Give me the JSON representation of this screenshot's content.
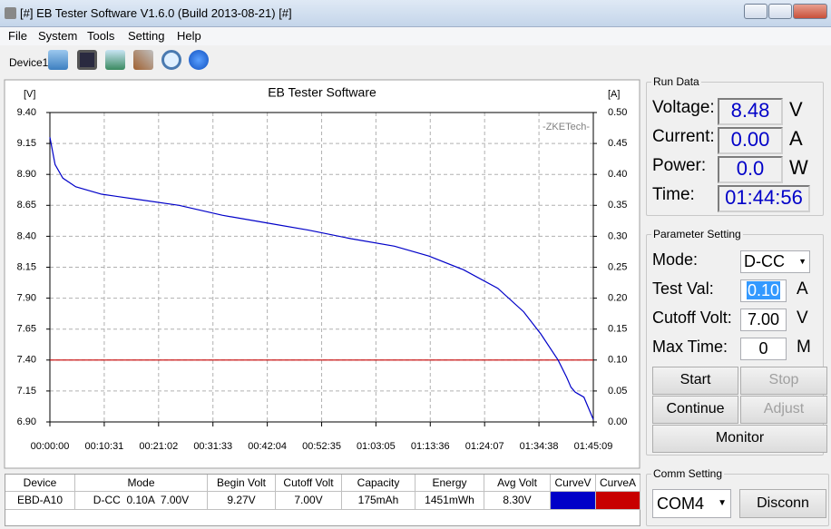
{
  "window": {
    "title": "[#] EB Tester Software V1.6.0 (Build 2013-08-21) [#]"
  },
  "menu": [
    "File",
    "System",
    "Tools",
    "Setting",
    "Help"
  ],
  "toolbar": {
    "device": "Device1"
  },
  "chart_data": {
    "type": "line",
    "title": "EB Tester Software",
    "y_label": "[V]",
    "y2_label": "[A]",
    "annotation": "-ZKETech-",
    "x": [
      0,
      60,
      150,
      300,
      600,
      1000,
      1500,
      2000,
      2500,
      3000,
      3500,
      4000,
      4400,
      4800,
      5200,
      5500,
      5700,
      5900,
      6000,
      6050,
      6100,
      6200,
      6309
    ],
    "series": [
      {
        "name": "Voltage",
        "color": "#0000c8",
        "values": [
          9.2,
          8.98,
          8.87,
          8.8,
          8.74,
          8.7,
          8.65,
          8.57,
          8.51,
          8.45,
          8.38,
          8.32,
          8.24,
          8.13,
          7.98,
          7.79,
          7.61,
          7.4,
          7.26,
          7.18,
          7.14,
          7.1,
          6.92
        ]
      },
      {
        "name": "Current",
        "color": "#c80000",
        "axis": "y2",
        "values": [
          0.1,
          0.1,
          0.1,
          0.1,
          0.1,
          0.1,
          0.1,
          0.1,
          0.1,
          0.1,
          0.1,
          0.1,
          0.1,
          0.1,
          0.1,
          0.1,
          0.1,
          0.1,
          0.1,
          0.1,
          0.1,
          0.1,
          0.1
        ]
      }
    ],
    "xlim": [
      0,
      6309
    ],
    "xticks": [
      {
        "value": 0,
        "label": "00:00:00"
      },
      {
        "value": 631,
        "label": "00:10:31"
      },
      {
        "value": 1262,
        "label": "00:21:02"
      },
      {
        "value": 1893,
        "label": "00:31:33"
      },
      {
        "value": 2524,
        "label": "00:42:04"
      },
      {
        "value": 3155,
        "label": "00:52:35"
      },
      {
        "value": 3785,
        "label": "01:03:05"
      },
      {
        "value": 4416,
        "label": "01:13:36"
      },
      {
        "value": 5047,
        "label": "01:24:07"
      },
      {
        "value": 5678,
        "label": "01:34:38"
      },
      {
        "value": 6309,
        "label": "01:45:09"
      }
    ],
    "ylim": [
      6.9,
      9.4
    ],
    "yticks": [
      {
        "value": 6.9,
        "label": "6.90"
      },
      7.15,
      {
        "value": 7.4,
        "label": "7.40"
      },
      7.65,
      {
        "value": 7.9,
        "label": "7.90"
      },
      8.15,
      {
        "value": 8.4,
        "label": "8.40"
      },
      8.65,
      {
        "value": 8.9,
        "label": "8.90"
      },
      9.15,
      {
        "value": 9.4,
        "label": "9.40"
      }
    ],
    "y2lim": [
      0,
      0.5
    ],
    "y2ticks": [
      {
        "value": 0,
        "label": "0.00"
      },
      0.05,
      {
        "value": 0.1,
        "label": "0.10"
      },
      0.15,
      {
        "value": 0.2,
        "label": "0.20"
      },
      0.25,
      {
        "value": 0.3,
        "label": "0.30"
      },
      0.35,
      {
        "value": 0.4,
        "label": "0.40"
      },
      0.45,
      {
        "value": 0.5,
        "label": "0.50"
      }
    ],
    "grid": true
  },
  "run_data": {
    "title": "Run Data",
    "fields": [
      {
        "label": "Voltage:",
        "value": "8.48",
        "unit": "V"
      },
      {
        "label": "Current:",
        "value": "0.00",
        "unit": "A"
      },
      {
        "label": "Power:",
        "value": "0.0",
        "unit": "W"
      },
      {
        "label": "Time:",
        "value": "01:44:56"
      }
    ]
  },
  "parameter_setting": {
    "title": "Parameter Setting",
    "fields": [
      {
        "label": "Mode:",
        "value": "D-CC"
      },
      {
        "label": "Test Val:",
        "value": "0.10",
        "unit": "A"
      },
      {
        "label": "Cutoff Volt:",
        "value": "7.00",
        "unit": "V"
      },
      {
        "label": "Max Time:",
        "value": "0",
        "unit": "M"
      }
    ],
    "buttons": [
      "Start",
      "Stop",
      "Continue",
      "Adjust",
      "Monitor"
    ]
  },
  "comm_setting": {
    "title": "Comm Setting",
    "port": "COM4",
    "button": "Disconn"
  },
  "table": {
    "headers": [
      "Device",
      "Mode",
      "Begin Volt",
      "Cutoff Volt",
      "Capacity",
      "Energy",
      "Avg Volt",
      "CurveV",
      "CurveA"
    ],
    "rows": [
      [
        "EBD-A10",
        "D-CC  0.10A  7.00V",
        "9.27V",
        "7.00V",
        "175mAh",
        "1451mWh",
        "8.30V"
      ]
    ]
  }
}
